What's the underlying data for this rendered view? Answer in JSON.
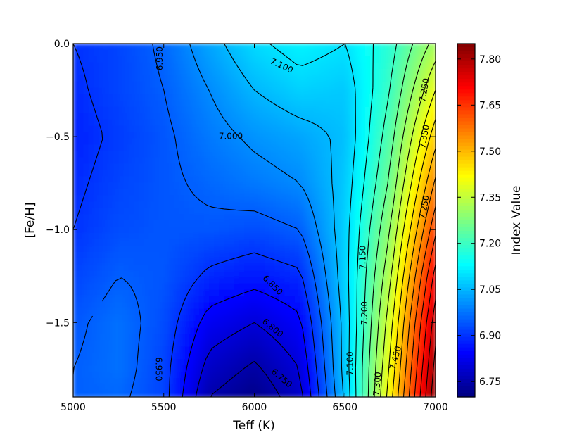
{
  "chart_data": {
    "type": "heatmap",
    "subtype": "filled-contour",
    "title": "",
    "xlabel": "Teff (K)",
    "ylabel": "[Fe/H]",
    "xlim": [
      5000,
      7000
    ],
    "ylim": [
      -1.9,
      0.0
    ],
    "xticks": [
      "5000",
      "5500",
      "6000",
      "6500",
      "7000"
    ],
    "yticks": [
      "0.0",
      "−0.5",
      "−1.0",
      "−1.5"
    ],
    "grid": false,
    "colormap": "jet",
    "colorbar": {
      "label": "Index Value",
      "range": [
        6.7,
        7.85
      ],
      "ticks": [
        "6.75",
        "6.90",
        "7.05",
        "7.20",
        "7.35",
        "7.50",
        "7.65",
        "7.80"
      ]
    },
    "contour_labels": [
      {
        "text": "6.950",
        "x": 5480,
        "y": -0.08,
        "rot": -90
      },
      {
        "text": "7.100",
        "x": 6150,
        "y": -0.12,
        "rot": 25
      },
      {
        "text": "7.000",
        "x": 5870,
        "y": -0.5,
        "rot": 0
      },
      {
        "text": "7.150",
        "x": 6600,
        "y": -1.15,
        "rot": -90
      },
      {
        "text": "6.850",
        "x": 6100,
        "y": -1.3,
        "rot": 45
      },
      {
        "text": "7.200",
        "x": 6610,
        "y": -1.45,
        "rot": -90
      },
      {
        "text": "6.800",
        "x": 6100,
        "y": -1.53,
        "rot": 40
      },
      {
        "text": "7.100",
        "x": 6530,
        "y": -1.72,
        "rot": -90
      },
      {
        "text": "7.450",
        "x": 6780,
        "y": -1.69,
        "rot": -75
      },
      {
        "text": "6.950",
        "x": 5470,
        "y": -1.75,
        "rot": 90
      },
      {
        "text": "6.750",
        "x": 6150,
        "y": -1.8,
        "rot": 40
      },
      {
        "text": "7.300",
        "x": 6680,
        "y": -1.83,
        "rot": -85
      },
      {
        "text": "7.350",
        "x": 6940,
        "y": -0.5,
        "rot": -80
      },
      {
        "text": "7.250",
        "x": 6940,
        "y": -0.25,
        "rot": -80
      },
      {
        "text": "7.250",
        "x": 6940,
        "y": -0.88,
        "rot": -80
      }
    ],
    "grid_data": {
      "x": [
        5000,
        5250,
        5500,
        5750,
        6000,
        6250,
        6500,
        6750,
        7000
      ],
      "y": [
        0.0,
        -0.25,
        -0.5,
        -0.75,
        -1.0,
        -1.25,
        -1.5,
        -1.75,
        -1.9
      ],
      "z": [
        [
          6.9,
          6.92,
          6.96,
          7.03,
          7.09,
          7.12,
          7.1,
          7.18,
          7.32
        ],
        [
          6.89,
          6.92,
          6.95,
          7.0,
          7.05,
          7.08,
          7.07,
          7.2,
          7.4
        ],
        [
          6.88,
          6.91,
          6.94,
          6.98,
          7.01,
          7.03,
          7.06,
          7.23,
          7.48
        ],
        [
          6.89,
          6.92,
          6.94,
          6.96,
          6.98,
          7.0,
          7.07,
          7.26,
          7.56
        ],
        [
          6.9,
          6.93,
          6.94,
          6.94,
          6.93,
          6.95,
          7.08,
          7.3,
          7.64
        ],
        [
          6.92,
          6.95,
          6.94,
          6.89,
          6.87,
          6.89,
          7.08,
          7.34,
          7.72
        ],
        [
          6.94,
          6.97,
          6.93,
          6.83,
          6.8,
          6.84,
          7.07,
          7.38,
          7.78
        ],
        [
          6.95,
          6.97,
          6.92,
          6.78,
          6.74,
          6.8,
          7.07,
          7.41,
          7.82
        ],
        [
          6.95,
          6.96,
          6.92,
          6.75,
          6.71,
          6.78,
          7.06,
          7.43,
          7.84
        ]
      ]
    }
  }
}
